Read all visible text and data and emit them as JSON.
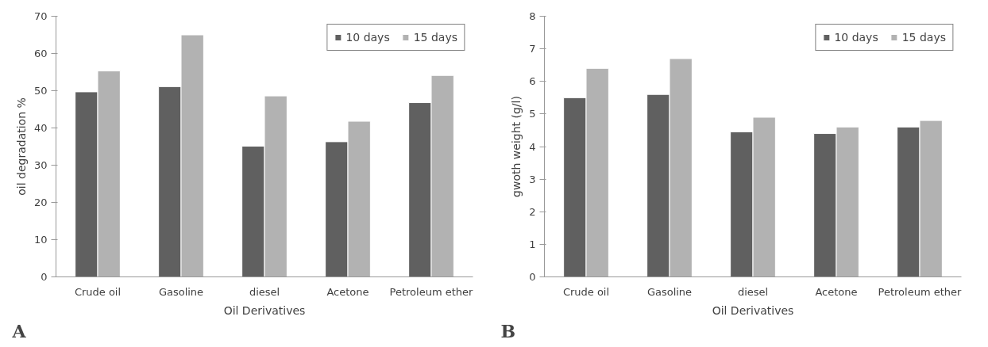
{
  "chart_data": [
    {
      "type": "bar",
      "categories": [
        "Crude oil",
        "Gasoline",
        "diesel",
        "Acetone",
        "Petroleum ether"
      ],
      "xlabel": "Oil Derivatives",
      "ylabel": "oil degradation %",
      "ylim": [
        0,
        70
      ],
      "yticks": [
        0,
        10,
        20,
        30,
        40,
        50,
        60,
        70
      ],
      "grid": false,
      "legend": "top right",
      "annotations": [
        "A"
      ],
      "series": [
        {
          "name": "10 days",
          "color": "#606060",
          "values": [
            49.7,
            51.1,
            35.1,
            36.3,
            46.8
          ]
        },
        {
          "name": "15 days",
          "color": "#b2b2b2",
          "values": [
            55.3,
            65.0,
            48.6,
            41.8,
            54.1
          ]
        }
      ]
    },
    {
      "type": "bar",
      "categories": [
        "Crude oil",
        "Gasoline",
        "diesel",
        "Acetone",
        "Petroleum ether"
      ],
      "xlabel": "Oil Derivatives",
      "ylabel": "gwoth weight (g/l)",
      "ylim": [
        0,
        8
      ],
      "yticks": [
        0,
        1,
        2,
        3,
        4,
        5,
        6,
        7,
        8
      ],
      "grid": false,
      "legend": "top right",
      "annotations": [
        "B"
      ],
      "series": [
        {
          "name": "10 days",
          "color": "#606060",
          "values": [
            5.5,
            5.6,
            4.45,
            4.4,
            4.6
          ]
        },
        {
          "name": "15 days",
          "color": "#b2b2b2",
          "values": [
            6.4,
            6.7,
            4.9,
            4.6,
            4.8
          ]
        }
      ]
    }
  ]
}
